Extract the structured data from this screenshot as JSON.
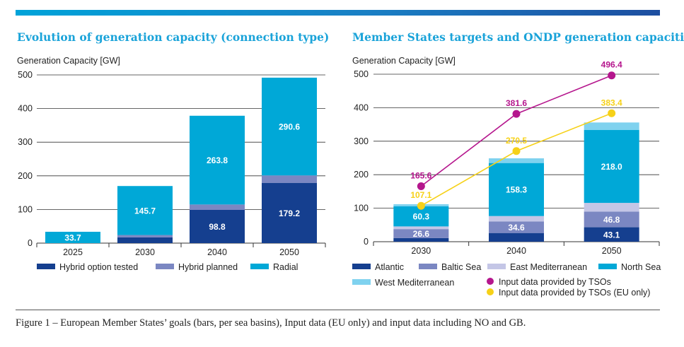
{
  "caption": "Figure 1 – European Member States’ goals (bars, per sea basins), Input data (EU only) and input data including NO and GB.",
  "colors": {
    "hybrid_tested": "#153f8f",
    "hybrid_planned": "#7b87c2",
    "radial": "#00a8d7",
    "atlantic": "#153f8f",
    "baltic": "#7b87c2",
    "east_med": "#c4c6e6",
    "north_sea": "#00a8d7",
    "west_med": "#7fd2ef",
    "tso_line": "#b5168d",
    "tso_eu_line": "#f6d118"
  },
  "chart_data": [
    {
      "type": "bar",
      "stacked": true,
      "title": "Evolution of generation capacity (connection type)",
      "ylabel": "Generation Capacity [GW]",
      "ylim": [
        0,
        500
      ],
      "yticks": [
        0,
        100,
        200,
        300,
        400,
        500
      ],
      "grid": true,
      "legend_position": "bottom",
      "categories": [
        "2025",
        "2030",
        "2040",
        "2050"
      ],
      "series": [
        {
          "name": "Hybrid option tested",
          "values": [
            0,
            17,
            98.8,
            179.2
          ],
          "labels": [
            "",
            "",
            "98.8",
            "179.2"
          ]
        },
        {
          "name": "Hybrid planned",
          "values": [
            0,
            7,
            16,
            22
          ],
          "labels": [
            "",
            "",
            "",
            ""
          ]
        },
        {
          "name": "Radial",
          "values": [
            33.7,
            145.7,
            263.8,
            290.6
          ],
          "labels": [
            "33.7",
            "145.7",
            "263.8",
            "290.6"
          ]
        }
      ]
    },
    {
      "type": "bar",
      "stacked": true,
      "title": "Member States targets and ONDP generation capacities",
      "ylabel": "Generation Capacity [GW]",
      "ylim": [
        0,
        500
      ],
      "yticks": [
        0,
        100,
        200,
        300,
        400,
        500
      ],
      "grid": true,
      "legend_position": "bottom",
      "categories": [
        "2030",
        "2040",
        "2050"
      ],
      "series": [
        {
          "name": "Atlantic",
          "values": [
            11,
            26,
            43.1
          ],
          "labels": [
            "",
            "",
            "43.1"
          ]
        },
        {
          "name": "Baltic Sea",
          "values": [
            26.6,
            34.6,
            46.8
          ],
          "labels": [
            "26.6",
            "34.6",
            "46.8"
          ]
        },
        {
          "name": "East Mediterranean",
          "values": [
            8,
            16,
            26
          ],
          "labels": [
            "",
            "",
            ""
          ]
        },
        {
          "name": "North Sea",
          "values": [
            60.3,
            158.3,
            218.0
          ],
          "labels": [
            "60.3",
            "158.3",
            "218.0"
          ]
        },
        {
          "name": "West Mediterranean",
          "values": [
            6,
            14,
            22
          ],
          "labels": [
            "",
            "",
            ""
          ]
        }
      ],
      "lines": [
        {
          "name": "Input data provided by TSOs",
          "values": [
            165.6,
            381.6,
            496.4
          ],
          "labels": [
            "165.6",
            "381.6",
            "496.4"
          ]
        },
        {
          "name": "Input data provided by TSOs (EU only)",
          "values": [
            107.1,
            270.5,
            383.4
          ],
          "labels": [
            "107.1",
            "270.5",
            "383.4"
          ]
        }
      ]
    }
  ]
}
